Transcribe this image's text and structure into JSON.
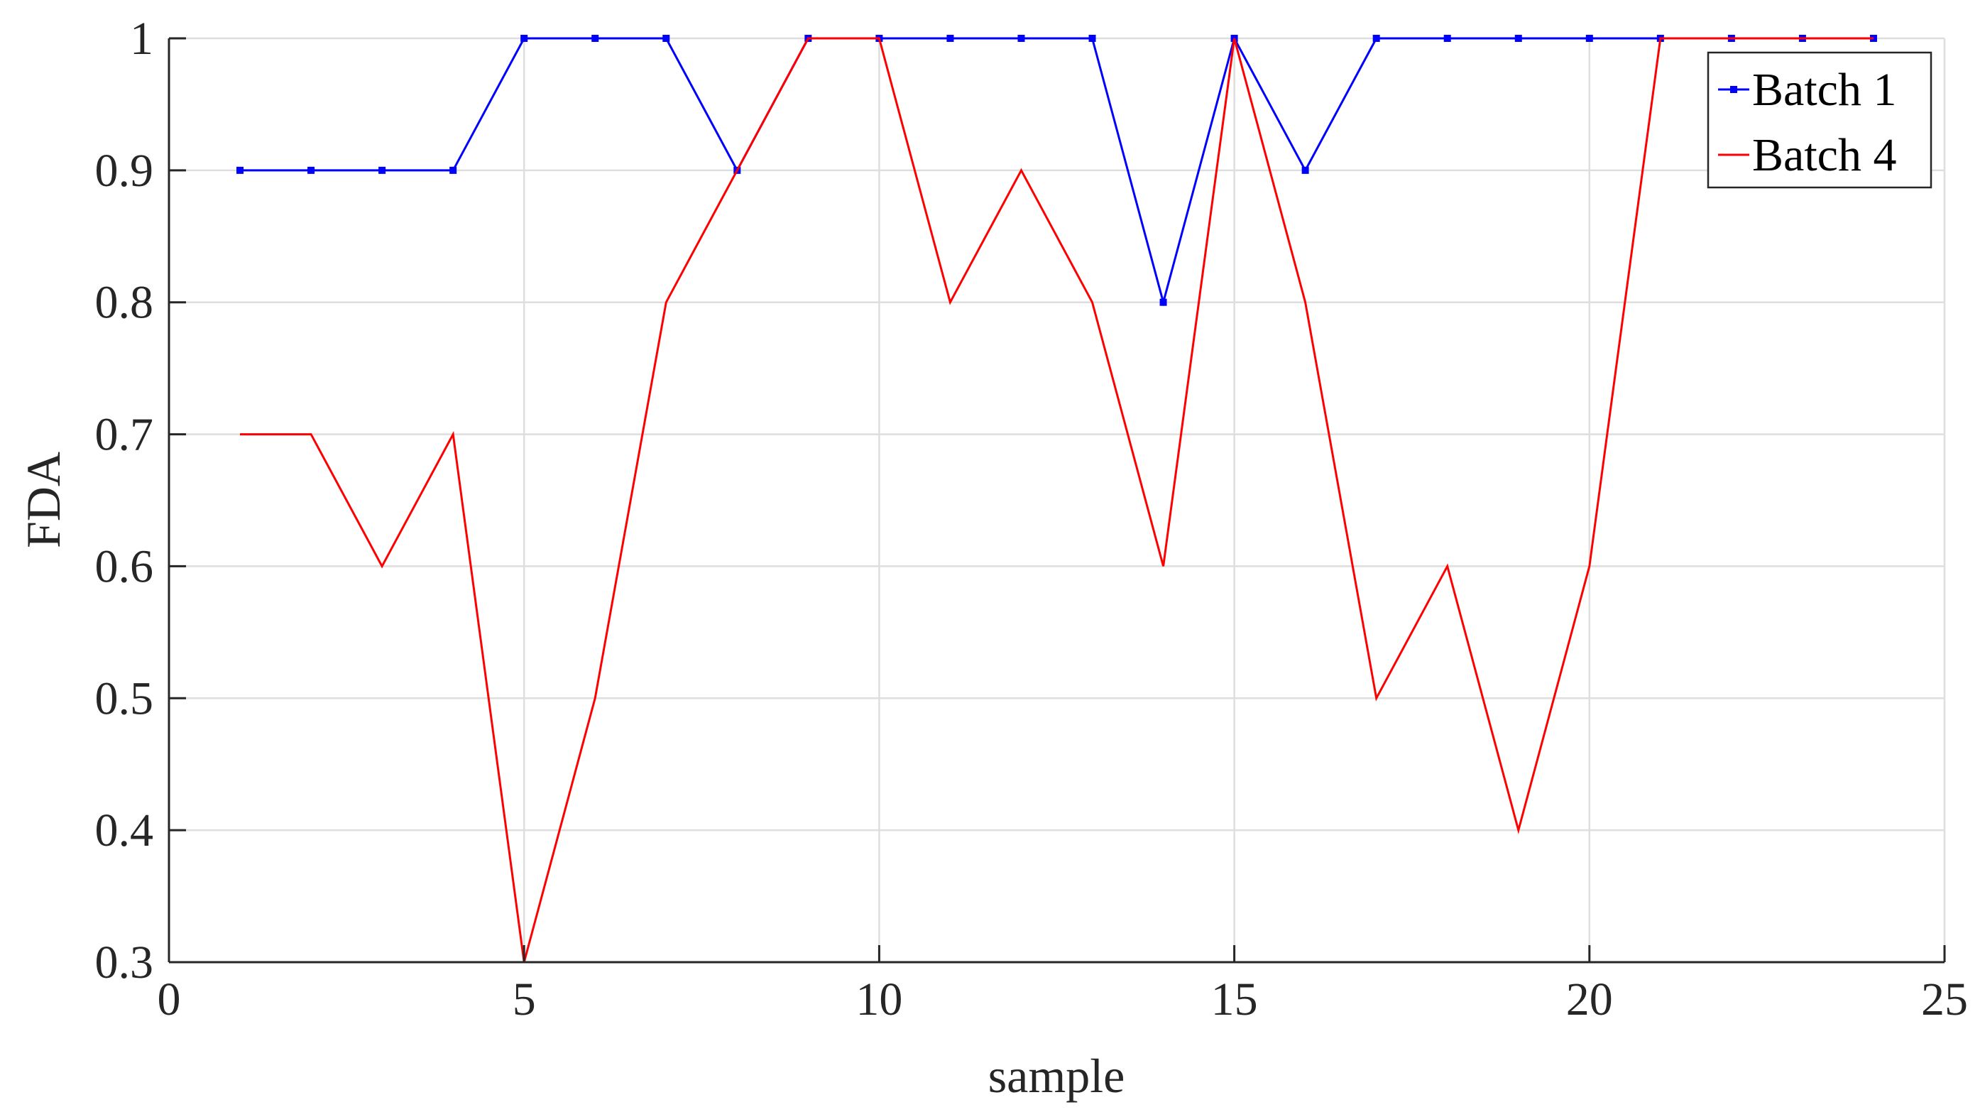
{
  "chart_data": {
    "type": "line",
    "title": "",
    "xlabel": "sample",
    "ylabel": "FDA",
    "xlim": [
      0,
      25
    ],
    "ylim": [
      0.3,
      1
    ],
    "xticks": [
      0,
      5,
      10,
      15,
      20,
      25
    ],
    "yticks": [
      0.3,
      0.4,
      0.5,
      0.6,
      0.7,
      0.8,
      0.9,
      1
    ],
    "xtick_labels": [
      "0",
      "5",
      "10",
      "15",
      "20",
      "25"
    ],
    "ytick_labels": [
      "0.3",
      "0.4",
      "0.5",
      "0.6",
      "0.7",
      "0.8",
      "0.9",
      "1"
    ],
    "grid": true,
    "legend_position": "top-right",
    "x": [
      1,
      2,
      3,
      4,
      5,
      6,
      7,
      8,
      9,
      10,
      11,
      12,
      13,
      14,
      15,
      16,
      17,
      18,
      19,
      20,
      21,
      22,
      23,
      24
    ],
    "series": [
      {
        "name": "Batch 1",
        "color": "#0000ff",
        "marker": "point",
        "values": [
          0.9,
          0.9,
          0.9,
          0.9,
          1,
          1,
          1,
          0.9,
          1,
          1,
          1,
          1,
          1,
          0.8,
          1,
          0.9,
          1,
          1,
          1,
          1,
          1,
          1,
          1,
          1
        ]
      },
      {
        "name": "Batch 4",
        "color": "#ff0000",
        "marker": "none",
        "values": [
          0.7,
          0.7,
          0.6,
          0.7,
          0.3,
          0.5,
          0.8,
          0.9,
          1,
          1,
          0.8,
          0.9,
          0.8,
          0.6,
          1,
          0.8,
          0.5,
          0.6,
          0.4,
          0.6,
          1,
          1,
          1,
          1
        ]
      }
    ]
  }
}
